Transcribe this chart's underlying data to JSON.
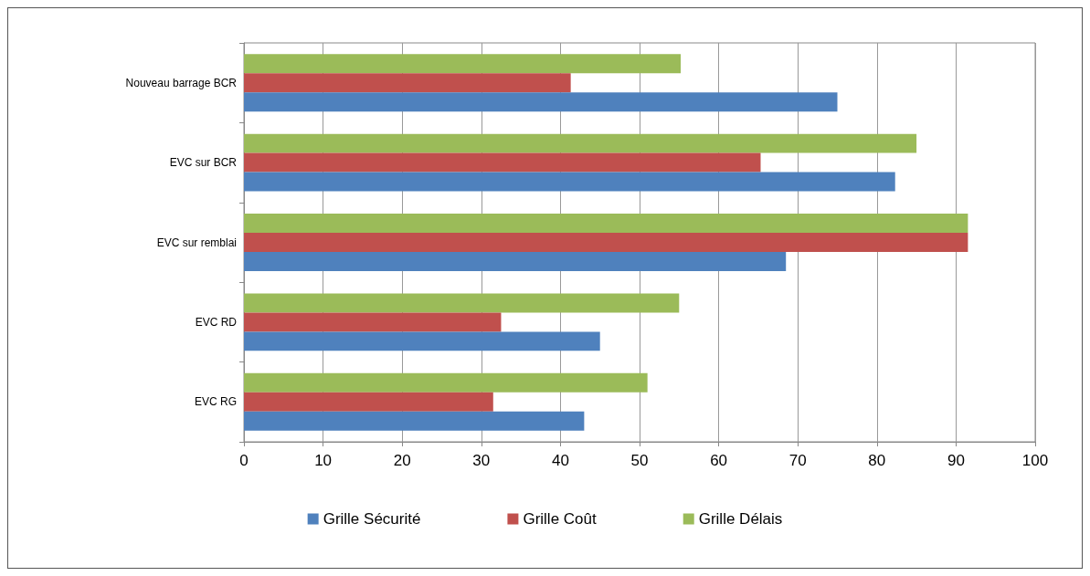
{
  "chart_data": {
    "type": "bar",
    "orientation": "horizontal",
    "categories": [
      "Nouveau barrage BCR",
      "EVC sur BCR",
      "EVC sur remblai",
      "EVC RD",
      "EVC RG"
    ],
    "series": [
      {
        "name": "Grille Sécurité",
        "color": "#4f81bd",
        "values": [
          75,
          82.3,
          68.5,
          45,
          43
        ]
      },
      {
        "name": "Grille Coût",
        "color": "#c0504d",
        "values": [
          41.3,
          65.3,
          91.5,
          32.5,
          31.5
        ]
      },
      {
        "name": "Grille Délais",
        "color": "#9bbb59",
        "values": [
          55.2,
          85,
          91.5,
          55,
          51
        ]
      }
    ],
    "xlim": [
      0,
      100
    ],
    "xticks": [
      0,
      10,
      20,
      30,
      40,
      50,
      60,
      70,
      80,
      90,
      100
    ],
    "grid": "x",
    "legend": "bottom"
  }
}
